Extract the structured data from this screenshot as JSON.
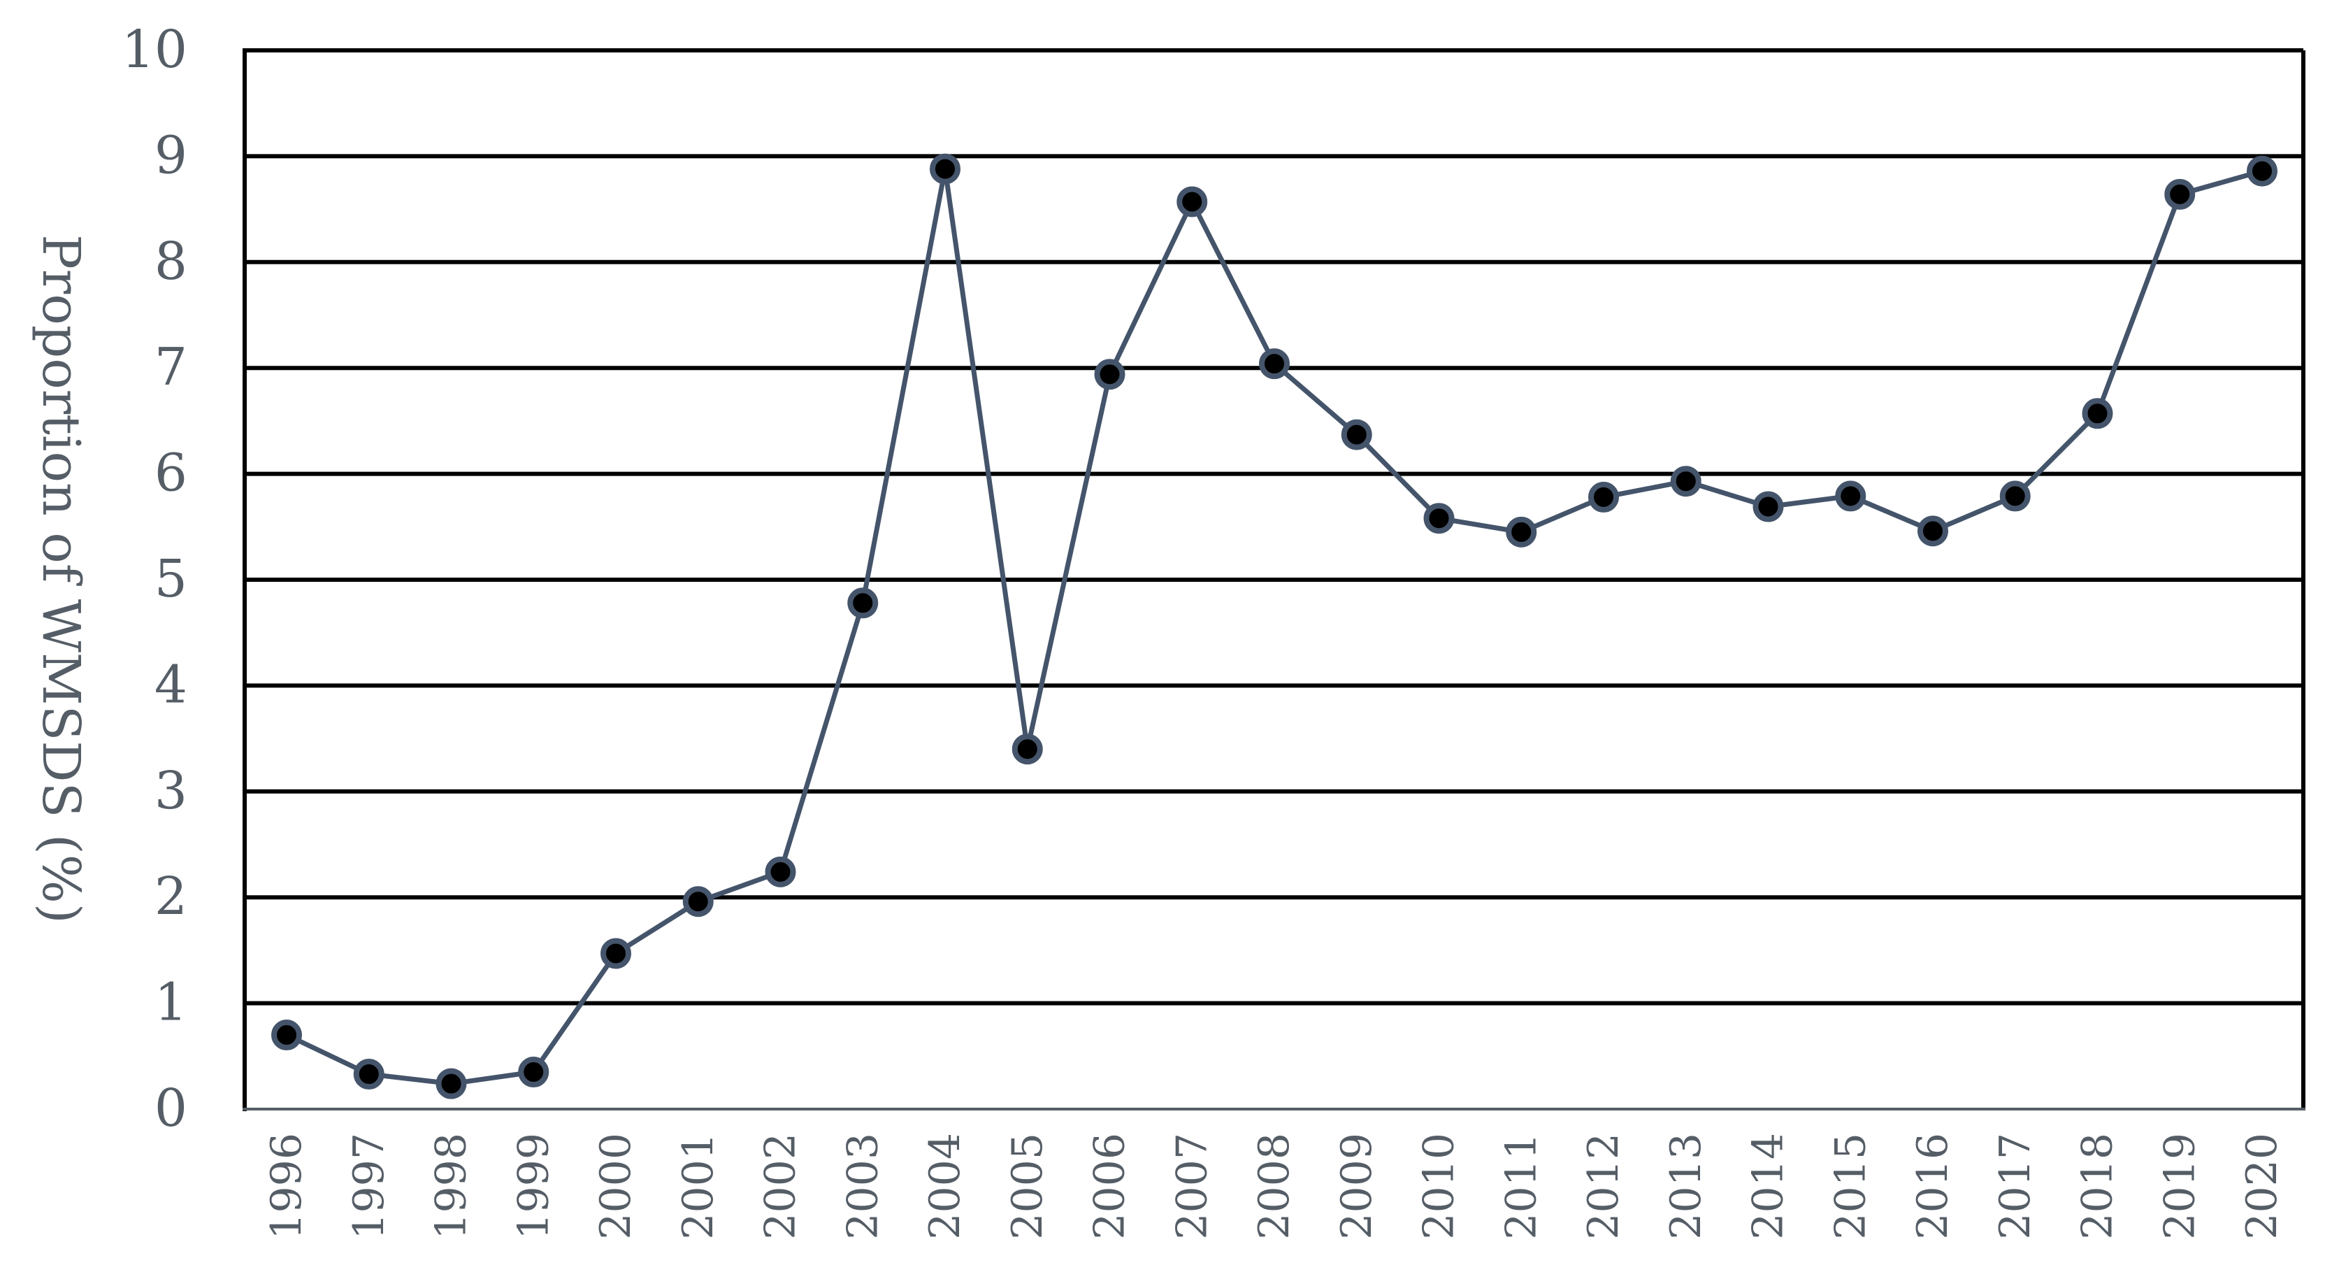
{
  "chart_data": {
    "type": "line",
    "title": "",
    "xlabel": "",
    "ylabel": "Proportion of WMSDS (%)",
    "ylim": [
      0,
      10
    ],
    "yticks": [
      "0",
      "1",
      "2",
      "3",
      "4",
      "5",
      "6",
      "7",
      "8",
      "9",
      "10"
    ],
    "grid": true,
    "legend": "none",
    "colors": {
      "line": "#44546a",
      "marker_fill": "#000000",
      "marker_edge": "#44546a",
      "grid": "#000000",
      "text": "#555d66"
    },
    "categories": [
      "1996",
      "1997",
      "1998",
      "1999",
      "2000",
      "2001",
      "2002",
      "2003",
      "2004",
      "2005",
      "2006",
      "2007",
      "2008",
      "2009",
      "2010",
      "2011",
      "2012",
      "2013",
      "2014",
      "2015",
      "2016",
      "2017",
      "2018",
      "2019",
      "2020"
    ],
    "series": [
      {
        "values": [
          0.7,
          0.33,
          0.24,
          0.35,
          1.47,
          1.96,
          2.24,
          4.78,
          8.88,
          3.4,
          6.94,
          8.57,
          7.04,
          6.37,
          5.58,
          5.45,
          5.78,
          5.93,
          5.69,
          5.79,
          5.46,
          5.79,
          6.57,
          8.64,
          8.86
        ]
      }
    ]
  }
}
